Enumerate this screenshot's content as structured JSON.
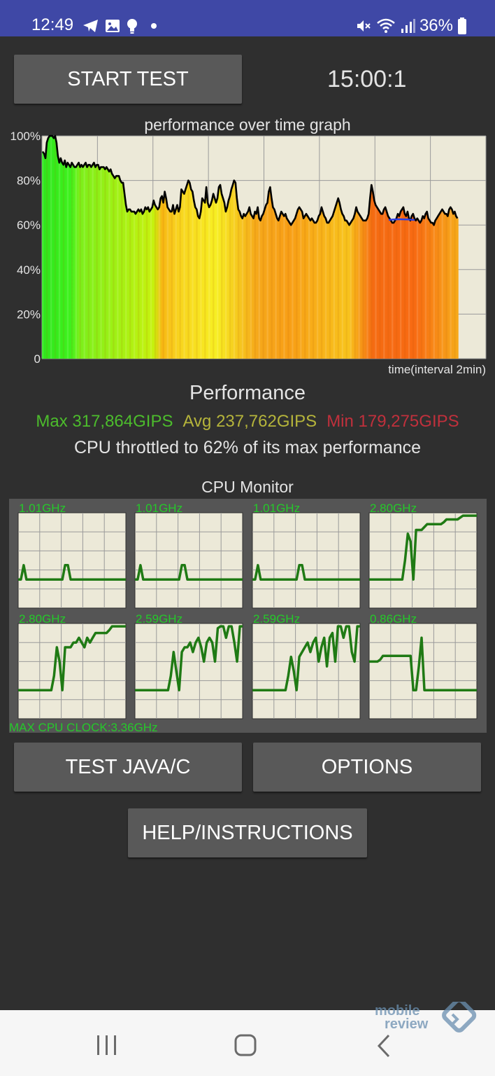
{
  "status_bar": {
    "time": "12:49",
    "battery": "36%",
    "icons_left": [
      "telegram-icon",
      "gallery-icon",
      "bulb-icon",
      "dot-icon"
    ],
    "icons_right": [
      "mute-icon",
      "wifi-icon",
      "signal-icon",
      "battery-icon"
    ]
  },
  "header": {
    "start_button": "START TEST",
    "timer": "15:00:1"
  },
  "graph": {
    "title": "performance over time graph",
    "y_ticks": [
      "100%",
      "80%",
      "60%",
      "40%",
      "20%",
      "0"
    ],
    "x_label": "time(interval 2min)"
  },
  "chart_data": {
    "type": "bar",
    "title": "performance over time graph",
    "xlabel": "time(interval 2min)",
    "ylabel": "",
    "ylim": [
      0,
      100
    ],
    "x_interval_minutes": 2,
    "total_minutes": 15,
    "values": [
      93,
      92,
      90,
      97,
      99,
      100,
      100,
      100,
      99,
      100,
      97,
      91,
      88,
      90,
      88,
      87,
      89,
      86,
      88,
      87,
      86,
      88,
      87,
      86,
      86,
      87,
      88,
      86,
      87,
      86,
      87,
      88,
      86,
      87,
      87,
      86,
      87,
      88,
      86,
      87,
      87,
      85,
      86,
      86,
      86,
      85,
      86,
      85,
      84,
      85,
      83,
      82,
      81,
      82,
      82,
      82,
      80,
      79,
      79,
      74,
      69,
      66,
      67,
      67,
      66,
      66,
      66,
      65,
      66,
      67,
      66,
      67,
      65,
      66,
      68,
      67,
      68,
      66,
      67,
      68,
      71,
      69,
      68,
      67,
      68,
      72,
      73,
      70,
      75,
      72,
      68,
      67,
      66,
      66,
      69,
      65,
      67,
      69,
      66,
      68,
      76,
      75,
      74,
      76,
      78,
      80,
      79,
      76,
      75,
      71,
      68,
      67,
      64,
      63,
      66,
      72,
      71,
      70,
      77,
      70,
      68,
      69,
      71,
      74,
      72,
      70,
      72,
      77,
      78,
      74,
      72,
      70,
      66,
      68,
      71,
      73,
      76,
      78,
      80,
      79,
      72,
      67,
      66,
      64,
      63,
      65,
      64,
      65,
      66,
      68,
      65,
      64,
      63,
      66,
      65,
      68,
      63,
      62,
      64,
      65,
      67,
      69,
      70,
      75,
      77,
      72,
      68,
      67,
      65,
      63,
      62,
      64,
      66,
      65,
      64,
      65,
      63,
      62,
      61,
      60,
      61,
      62,
      63,
      65,
      67,
      68,
      67,
      66,
      63,
      64,
      65,
      64,
      63,
      62,
      63,
      62,
      61,
      61,
      62,
      64,
      65,
      68,
      66,
      64,
      63,
      61,
      61,
      62,
      63,
      64,
      66,
      68,
      70,
      72,
      70,
      67,
      65,
      64,
      62,
      62,
      61,
      60,
      61,
      62,
      63,
      65,
      68,
      66,
      65,
      64,
      63,
      62,
      62,
      62,
      63,
      65,
      72,
      78,
      75,
      71,
      69,
      68,
      67,
      66,
      65,
      65,
      67,
      68,
      66,
      64,
      63,
      62,
      61,
      61,
      62,
      63,
      65,
      64,
      66,
      67,
      68,
      65,
      64,
      66,
      63,
      62,
      64,
      65,
      63,
      62,
      63,
      62,
      61,
      62,
      64,
      63,
      65,
      66,
      63,
      62,
      61,
      61,
      60,
      62,
      63,
      64,
      65,
      66,
      67,
      66,
      65,
      65,
      64,
      67,
      68,
      67,
      65,
      66,
      64,
      63
    ],
    "annotations": {
      "max": "Max 317,864GIPS",
      "avg": "Avg 237,762GIPS",
      "min": "Min 179,275GIPS",
      "throttle_pct": 62
    }
  },
  "performance": {
    "title": "Performance",
    "max": "Max 317,864GIPS",
    "avg": "Avg 237,762GIPS",
    "min": "Min 179,275GIPS",
    "throttled": "CPU throttled to 62% of its max performance"
  },
  "cpu_monitor": {
    "title": "CPU Monitor",
    "max_clock": "MAX CPU CLOCK:3.36GHz",
    "cores": [
      {
        "freq": "1.01GHz",
        "trace": [
          0.3,
          0.3,
          0.45,
          0.3,
          0.3,
          0.3,
          0.3,
          0.3,
          0.3,
          0.3,
          0.3,
          0.3,
          0.3,
          0.3,
          0.3,
          0.3,
          0.3,
          0.45,
          0.45,
          0.3,
          0.3,
          0.3,
          0.3,
          0.3,
          0.3,
          0.3,
          0.3,
          0.3,
          0.3,
          0.3,
          0.3,
          0.3,
          0.3,
          0.3,
          0.3,
          0.3,
          0.3,
          0.3,
          0.3,
          0.3
        ]
      },
      {
        "freq": "1.01GHz",
        "trace": [
          0.3,
          0.3,
          0.45,
          0.3,
          0.3,
          0.3,
          0.3,
          0.3,
          0.3,
          0.3,
          0.3,
          0.3,
          0.3,
          0.3,
          0.3,
          0.3,
          0.3,
          0.45,
          0.45,
          0.3,
          0.3,
          0.3,
          0.3,
          0.3,
          0.3,
          0.3,
          0.3,
          0.3,
          0.3,
          0.3,
          0.3,
          0.3,
          0.3,
          0.3,
          0.3,
          0.3,
          0.3,
          0.3,
          0.3,
          0.3
        ]
      },
      {
        "freq": "1.01GHz",
        "trace": [
          0.3,
          0.3,
          0.45,
          0.3,
          0.3,
          0.3,
          0.3,
          0.3,
          0.3,
          0.3,
          0.3,
          0.3,
          0.3,
          0.3,
          0.3,
          0.3,
          0.3,
          0.45,
          0.45,
          0.3,
          0.3,
          0.3,
          0.3,
          0.3,
          0.3,
          0.3,
          0.3,
          0.3,
          0.3,
          0.3,
          0.3,
          0.3,
          0.3,
          0.3,
          0.3,
          0.3,
          0.3,
          0.3,
          0.3,
          0.3
        ]
      },
      {
        "freq": "2.80GHz",
        "trace": [
          0.3,
          0.3,
          0.3,
          0.3,
          0.3,
          0.3,
          0.3,
          0.3,
          0.3,
          0.3,
          0.3,
          0.3,
          0.3,
          0.5,
          0.78,
          0.7,
          0.3,
          0.82,
          0.82,
          0.82,
          0.85,
          0.88,
          0.88,
          0.88,
          0.88,
          0.88,
          0.88,
          0.9,
          0.93,
          0.93,
          0.93,
          0.93,
          0.93,
          0.95,
          0.97,
          0.97,
          0.97,
          0.97,
          0.97,
          0.97
        ]
      },
      {
        "freq": "2.80GHz",
        "trace": [
          0.3,
          0.3,
          0.3,
          0.3,
          0.3,
          0.3,
          0.3,
          0.3,
          0.3,
          0.3,
          0.3,
          0.3,
          0.3,
          0.45,
          0.75,
          0.6,
          0.3,
          0.75,
          0.75,
          0.75,
          0.8,
          0.8,
          0.85,
          0.8,
          0.75,
          0.85,
          0.8,
          0.85,
          0.9,
          0.9,
          0.9,
          0.9,
          0.9,
          0.93,
          0.97,
          0.97,
          0.97,
          0.97,
          0.97,
          0.97
        ]
      },
      {
        "freq": "2.59GHz",
        "trace": [
          0.3,
          0.3,
          0.3,
          0.3,
          0.3,
          0.3,
          0.3,
          0.3,
          0.3,
          0.3,
          0.3,
          0.3,
          0.3,
          0.45,
          0.7,
          0.5,
          0.3,
          0.7,
          0.75,
          0.75,
          0.8,
          0.7,
          0.8,
          0.85,
          0.75,
          0.6,
          0.8,
          0.85,
          0.8,
          0.6,
          0.95,
          0.97,
          0.97,
          0.85,
          0.97,
          0.97,
          0.8,
          0.6,
          0.97,
          0.97
        ]
      },
      {
        "freq": "2.59GHz",
        "trace": [
          0.3,
          0.3,
          0.3,
          0.3,
          0.3,
          0.3,
          0.3,
          0.3,
          0.3,
          0.3,
          0.3,
          0.3,
          0.3,
          0.45,
          0.65,
          0.5,
          0.3,
          0.65,
          0.7,
          0.75,
          0.8,
          0.7,
          0.8,
          0.85,
          0.6,
          0.75,
          0.85,
          0.55,
          0.85,
          0.9,
          0.6,
          0.97,
          0.97,
          0.85,
          0.97,
          0.97,
          0.7,
          0.6,
          0.97,
          0.97
        ]
      },
      {
        "freq": "0.86GHz",
        "trace": [
          0.6,
          0.6,
          0.6,
          0.6,
          0.62,
          0.66,
          0.66,
          0.66,
          0.66,
          0.66,
          0.66,
          0.66,
          0.66,
          0.66,
          0.66,
          0.66,
          0.3,
          0.3,
          0.55,
          0.85,
          0.3,
          0.3,
          0.3,
          0.3,
          0.3,
          0.3,
          0.3,
          0.3,
          0.3,
          0.3,
          0.3,
          0.3,
          0.3,
          0.3,
          0.3,
          0.3,
          0.3,
          0.3,
          0.3,
          0.3
        ]
      }
    ]
  },
  "buttons": {
    "java": "TEST JAVA/C",
    "options": "OPTIONS",
    "help": "HELP/INSTRUCTIONS"
  },
  "watermark": {
    "line1": "mobile",
    "line2": "review"
  },
  "colors": {
    "status_bar": "#3f48a6",
    "max_text": "#4cbc2c",
    "avg_text": "#b5b43b",
    "min_text": "#c0303c",
    "cpu_trace": "#1f7a14",
    "cpu_text": "#25c92a",
    "graph_bg": "#ece9d8"
  }
}
